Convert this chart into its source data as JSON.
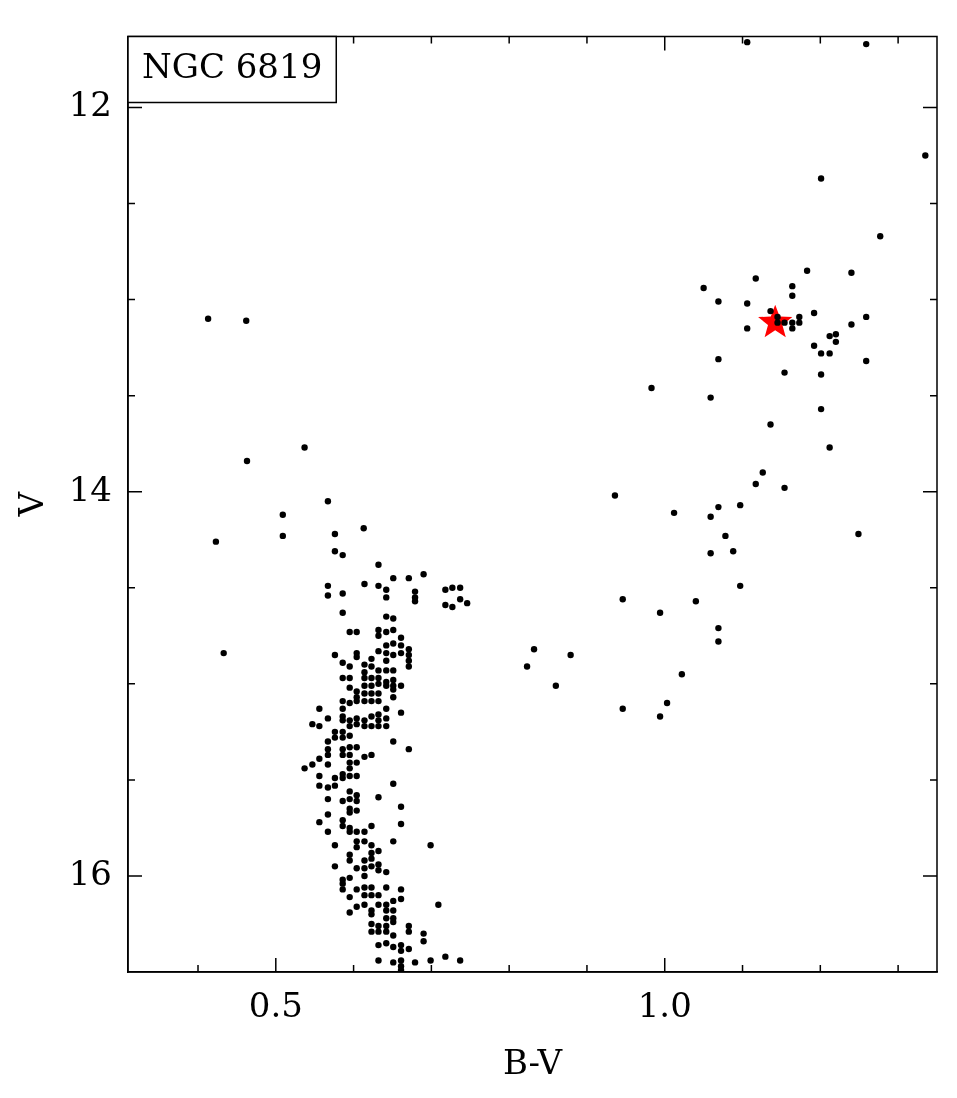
{
  "chart_data": {
    "type": "scatter",
    "xlabel": "B-V",
    "ylabel": "V",
    "annotations": [
      "NGC 6819"
    ],
    "xlim": [
      0.31,
      1.35
    ],
    "ylim": [
      16.5,
      11.63
    ],
    "xticks": [
      {
        "value": 0.4,
        "label": null
      },
      0.5,
      {
        "value": 0.6,
        "label": null
      },
      {
        "value": 0.7,
        "label": null
      },
      {
        "value": 0.8,
        "label": null
      },
      {
        "value": 0.9,
        "label": null
      },
      {
        "value": 1.0,
        "label": "1.0"
      },
      {
        "value": 1.1,
        "label": null
      },
      {
        "value": 1.2,
        "label": null
      },
      {
        "value": 1.3,
        "label": null
      }
    ],
    "yticks": [
      12,
      {
        "value": 12.5,
        "label": null
      },
      {
        "value": 13,
        "label": null
      },
      {
        "value": 13.5,
        "label": null
      },
      14,
      {
        "value": 14.5,
        "label": null
      },
      {
        "value": 15,
        "label": null
      },
      {
        "value": 15.5,
        "label": null
      },
      16
    ],
    "grid": false,
    "legend": false,
    "series": [
      {
        "color": "#000000",
        "marker": "circle",
        "x": [
          0.413,
          0.462,
          0.463,
          0.537,
          0.423,
          0.509,
          0.509,
          0.567,
          0.433,
          0.613,
          0.576,
          0.576,
          0.586,
          0.632,
          1.183,
          1.24,
          1.117,
          1.05,
          1.164,
          1.164,
          1.069,
          1.106,
          1.136,
          1.192,
          1.259,
          1.173,
          1.173,
          1.145,
          1.145,
          1.154,
          1.164,
          1.164,
          1.106,
          1.24,
          1.212,
          1.22,
          1.22,
          1.192,
          1.201,
          1.212,
          1.069,
          1.259,
          1.154,
          1.201,
          0.983,
          1.059,
          1.201,
          1.136,
          1.212,
          1.126,
          1.117,
          1.154,
          0.936,
          1.012,
          1.059,
          1.069,
          1.097,
          1.249,
          1.078,
          1.059,
          1.088,
          1.097,
          0.946,
          1.04,
          0.994,
          1.069,
          1.069,
          0.832,
          0.879,
          0.823,
          1.022,
          0.86,
          1.003,
          0.946,
          0.994,
          1.106,
          1.259,
          1.335,
          1.201,
          1.277,
          0.651,
          0.671,
          0.69,
          0.567,
          0.567,
          0.586,
          0.614,
          0.632,
          0.642,
          0.642,
          0.679,
          0.679,
          0.679,
          0.718,
          0.727,
          0.737,
          0.718,
          0.727,
          0.737,
          0.746,
          0.586,
          0.642,
          0.651,
          0.595,
          0.604,
          0.632,
          0.632,
          0.642,
          0.651,
          0.661,
          0.642,
          0.651,
          0.661,
          0.671,
          0.632,
          0.576,
          0.604,
          0.604,
          0.623,
          0.642,
          0.642,
          0.651,
          0.661,
          0.671,
          0.671,
          0.671,
          0.586,
          0.595,
          0.614,
          0.623,
          0.632,
          0.642,
          0.651,
          0.586,
          0.595,
          0.614,
          0.614,
          0.623,
          0.632,
          0.642,
          0.651,
          0.651,
          0.661,
          0.595,
          0.604,
          0.614,
          0.623,
          0.632,
          0.642,
          0.651,
          0.651,
          0.604,
          0.614,
          0.614,
          0.623,
          0.632,
          0.586,
          0.595,
          0.586,
          0.604,
          0.623,
          0.632,
          0.642,
          0.661,
          0.556,
          0.567,
          0.586,
          0.586,
          0.595,
          0.604,
          0.614,
          0.623,
          0.632,
          0.632,
          0.642,
          0.547,
          0.556,
          0.595,
          0.604,
          0.614,
          0.623,
          0.632,
          0.642,
          0.576,
          0.586,
          0.567,
          0.576,
          0.586,
          0.595,
          0.651,
          0.671,
          0.567,
          0.586,
          0.595,
          0.604,
          0.567,
          0.586,
          0.595,
          0.614,
          0.623,
          0.556,
          0.547,
          0.537,
          0.567,
          0.595,
          0.595,
          0.604,
          0.556,
          0.576,
          0.586,
          0.595,
          0.604,
          0.556,
          0.567,
          0.576,
          0.586,
          0.651,
          0.595,
          0.567,
          0.586,
          0.595,
          0.604,
          0.604,
          0.632,
          0.661,
          0.595,
          0.604,
          0.595,
          0.567,
          0.556,
          0.586,
          0.586,
          0.595,
          0.595,
          0.604,
          0.614,
          0.623,
          0.661,
          0.567,
          0.614,
          0.604,
          0.623,
          0.576,
          0.651,
          0.699,
          0.604,
          0.632,
          0.595,
          0.623,
          0.595,
          0.614,
          0.623,
          0.576,
          0.604,
          0.614,
          0.623,
          0.632,
          0.632,
          0.642,
          0.614,
          0.586,
          0.595,
          0.586,
          0.586,
          0.604,
          0.614,
          0.623,
          0.614,
          0.623,
          0.632,
          0.642,
          0.595,
          0.661,
          0.661,
          0.651,
          0.709,
          0.604,
          0.614,
          0.632,
          0.642,
          0.595,
          0.623,
          0.623,
          0.642,
          0.651,
          0.642,
          0.651,
          0.623,
          0.632,
          0.642,
          0.651,
          0.671,
          0.623,
          0.632,
          0.642,
          0.651,
          0.671,
          0.69,
          0.69,
          0.632,
          0.642,
          0.651,
          0.661,
          0.661,
          0.671,
          0.632,
          0.651,
          0.661,
          0.661,
          0.679,
          0.699,
          0.718,
          0.737,
          0.661
        ],
        "values": [
          13.1,
          13.11,
          13.84,
          13.77,
          14.26,
          14.12,
          14.23,
          14.05,
          14.84,
          14.19,
          14.22,
          14.31,
          14.33,
          14.38,
          12.85,
          12.86,
          12.89,
          12.94,
          12.93,
          12.98,
          13.01,
          13.02,
          13.06,
          13.07,
          13.09,
          13.09,
          13.12,
          13.09,
          13.12,
          13.12,
          13.12,
          13.15,
          13.15,
          13.13,
          13.19,
          13.18,
          13.22,
          13.24,
          13.28,
          13.28,
          13.31,
          13.32,
          13.38,
          13.39,
          13.46,
          13.51,
          13.57,
          13.65,
          13.77,
          13.9,
          13.96,
          13.98,
          14.02,
          14.11,
          14.13,
          14.08,
          14.07,
          14.22,
          14.23,
          14.32,
          14.31,
          14.49,
          14.56,
          14.57,
          14.63,
          14.71,
          14.78,
          14.82,
          14.85,
          14.91,
          14.95,
          15.01,
          15.1,
          15.13,
          15.17,
          11.66,
          11.67,
          12.25,
          12.37,
          12.67,
          14.45,
          14.45,
          14.43,
          14.49,
          14.54,
          14.53,
          14.48,
          14.49,
          14.51,
          14.55,
          14.52,
          14.55,
          14.57,
          14.51,
          14.5,
          14.5,
          14.59,
          14.6,
          14.56,
          14.58,
          14.63,
          14.65,
          14.66,
          14.73,
          14.73,
          14.72,
          14.75,
          14.73,
          14.72,
          14.76,
          14.8,
          14.79,
          14.8,
          14.82,
          14.83,
          14.85,
          14.84,
          14.86,
          14.87,
          14.84,
          14.88,
          14.85,
          14.84,
          14.85,
          14.88,
          14.91,
          14.89,
          14.91,
          14.9,
          14.91,
          14.93,
          14.93,
          14.93,
          14.97,
          14.97,
          14.94,
          14.97,
          14.97,
          14.97,
          14.99,
          14.98,
          15.01,
          15.01,
          15.02,
          15.04,
          15.01,
          15.01,
          15.0,
          15.01,
          15.03,
          15.07,
          15.07,
          15.05,
          15.09,
          15.05,
          15.05,
          15.09,
          15.1,
          15.13,
          15.09,
          15.09,
          15.09,
          15.13,
          15.15,
          15.13,
          15.18,
          15.17,
          15.19,
          15.19,
          15.18,
          15.19,
          15.17,
          15.16,
          15.19,
          15.18,
          15.21,
          15.22,
          15.22,
          15.21,
          15.22,
          15.22,
          15.22,
          15.22,
          15.25,
          15.25,
          15.3,
          15.28,
          15.28,
          15.27,
          15.3,
          15.34,
          15.34,
          15.34,
          15.33,
          15.33,
          15.37,
          15.37,
          15.37,
          15.38,
          15.37,
          15.39,
          15.42,
          15.44,
          15.42,
          15.41,
          15.44,
          15.41,
          15.48,
          15.49,
          15.47,
          15.48,
          15.48,
          15.53,
          15.54,
          15.53,
          15.49,
          15.52,
          15.56,
          15.6,
          15.61,
          15.6,
          15.58,
          15.61,
          15.59,
          15.64,
          15.65,
          15.66,
          15.67,
          15.68,
          15.72,
          15.71,
          15.74,
          15.75,
          15.77,
          15.77,
          15.77,
          15.74,
          15.73,
          15.77,
          15.82,
          15.82,
          15.84,
          15.84,
          15.82,
          15.84,
          15.85,
          15.87,
          15.89,
          15.88,
          15.92,
          15.92,
          15.91,
          15.95,
          15.96,
          15.96,
          15.95,
          15.94,
          15.97,
          15.98,
          16.0,
          16.02,
          16.01,
          16.04,
          16.07,
          16.07,
          16.06,
          16.06,
          16.1,
          16.1,
          16.1,
          16.06,
          16.11,
          16.07,
          16.12,
          16.13,
          16.15,
          16.16,
          16.15,
          16.15,
          16.15,
          16.19,
          16.18,
          16.2,
          16.18,
          16.18,
          16.22,
          16.22,
          16.25,
          16.26,
          16.26,
          16.24,
          16.26,
          16.29,
          16.29,
          16.29,
          16.31,
          16.29,
          16.3,
          16.34,
          16.36,
          16.35,
          16.37,
          16.36,
          16.39,
          16.38,
          16.44,
          16.45,
          16.44,
          16.47,
          16.45,
          16.44,
          16.42,
          16.44,
          16.49
        ]
      },
      {
        "color": "#ff0000",
        "marker": "star",
        "x": [
          1.142
        ],
        "values": [
          13.12
        ]
      }
    ]
  }
}
